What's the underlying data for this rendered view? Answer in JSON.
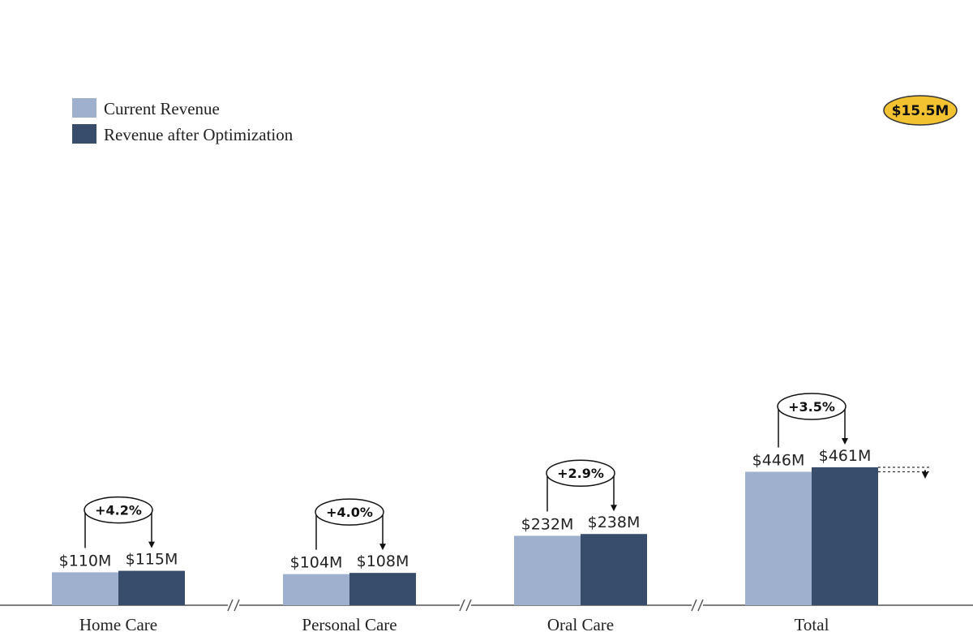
{
  "chart_data": {
    "type": "bar",
    "categories": [
      "Home Care",
      "Personal Care",
      "Oral Care",
      "Total"
    ],
    "series": [
      {
        "name": "Current Revenue",
        "values": [
          110,
          104,
          232,
          446
        ],
        "labels": [
          "$110M",
          "$104M",
          "$232M",
          "$446M"
        ]
      },
      {
        "name": "Revenue after Optimization",
        "values": [
          115,
          108,
          238,
          461
        ],
        "labels": [
          "$115M",
          "$108M",
          "$238M",
          "$461M"
        ]
      }
    ],
    "changes": [
      "+4.2%",
      "+4.0%",
      "+2.9%",
      "+3.5%"
    ],
    "total_delta_label": "$15.5M",
    "axis_break_symbol": "//",
    "ylim": [
      0,
      480
    ],
    "unit": "$M",
    "legend_position": "top-left",
    "grid": false,
    "title": "",
    "xlabel": "",
    "ylabel": ""
  },
  "colors": {
    "current": "#9eb0ce",
    "optimized": "#384c6c",
    "highlight": "#f2c230",
    "axis": "#555555"
  }
}
